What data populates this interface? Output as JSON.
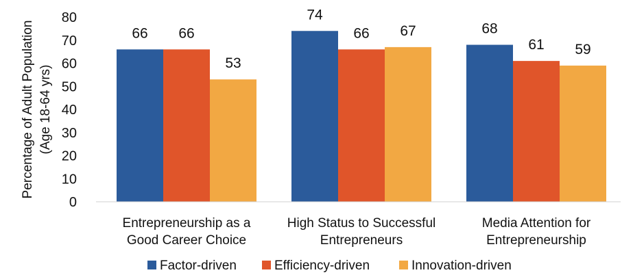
{
  "chart_data": {
    "type": "bar",
    "categories": [
      [
        "Entrepreneurship as a",
        "Good Career Choice"
      ],
      [
        "High Status to Successful",
        "Entrepreneurs"
      ],
      [
        "Media Attention for",
        "Entrepreneurship"
      ]
    ],
    "series": [
      {
        "name": "Factor-driven",
        "values": [
          66,
          74,
          68
        ],
        "color": "#2b5b9b"
      },
      {
        "name": "Efficiency-driven",
        "values": [
          66,
          66,
          61
        ],
        "color": "#e0552a"
      },
      {
        "name": "Innovation-driven",
        "values": [
          53,
          67,
          59
        ],
        "color": "#f2a843"
      }
    ],
    "ylabel": [
      "Percentage of Adult Population",
      "(Age 18-64 yrs)"
    ],
    "ylim": [
      0,
      80
    ],
    "yticks": [
      0,
      10,
      20,
      30,
      40,
      50,
      60,
      70,
      80
    ],
    "grid": false,
    "legend_position": "bottom"
  }
}
